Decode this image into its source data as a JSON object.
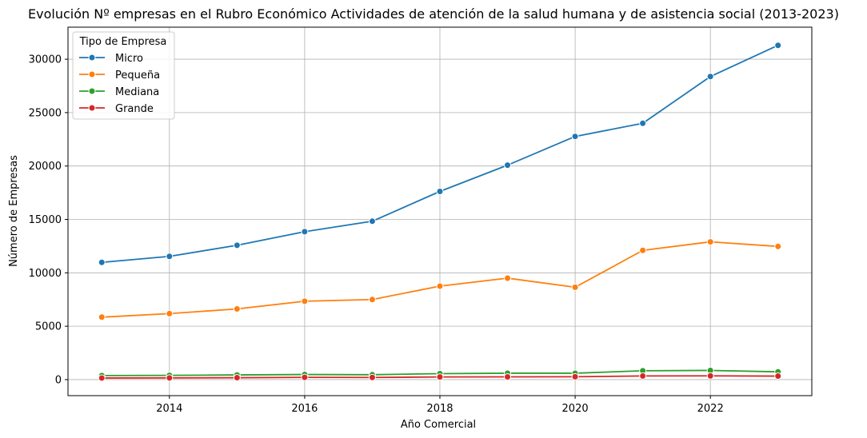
{
  "chart_data": {
    "type": "line",
    "title": "Evolución Nº empresas en el Rubro Económico Actividades de atención de la salud humana y de asistencia social (2013-2023)",
    "xlabel": "Año Comercial",
    "ylabel": "Número de Empresas",
    "x": [
      2013,
      2014,
      2015,
      2016,
      2017,
      2018,
      2019,
      2020,
      2021,
      2022,
      2023
    ],
    "xlim": [
      2012.5,
      2023.5
    ],
    "ylim": [
      -1500,
      33000
    ],
    "xticks": [
      2014,
      2016,
      2018,
      2020,
      2022
    ],
    "yticks": [
      0,
      5000,
      10000,
      15000,
      20000,
      25000,
      30000
    ],
    "grid": true,
    "legend": {
      "title": "Tipo de Empresa",
      "placement": "top-left"
    },
    "series": [
      {
        "name": "Micro",
        "color": "#1f77b4",
        "values": [
          10980,
          11540,
          12580,
          13850,
          14830,
          17620,
          20080,
          22770,
          24000,
          28380,
          31300
        ]
      },
      {
        "name": "Pequeña",
        "color": "#ff7f0e",
        "values": [
          5850,
          6180,
          6620,
          7340,
          7500,
          8750,
          9500,
          8650,
          12100,
          12900,
          12470
        ]
      },
      {
        "name": "Mediana",
        "color": "#2ca02c",
        "values": [
          380,
          400,
          440,
          480,
          460,
          560,
          600,
          600,
          830,
          860,
          730
        ]
      },
      {
        "name": "Grande",
        "color": "#d62728",
        "values": [
          150,
          160,
          180,
          210,
          200,
          250,
          260,
          270,
          340,
          350,
          330
        ]
      }
    ]
  }
}
